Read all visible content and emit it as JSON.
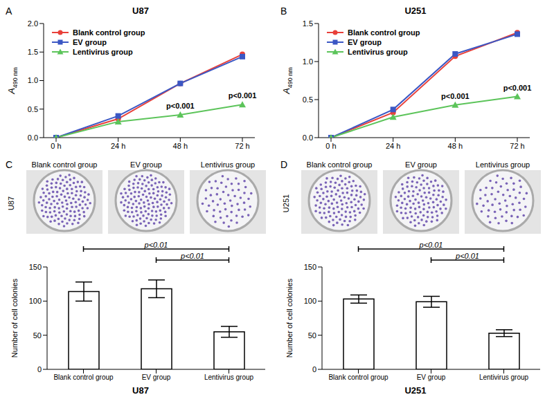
{
  "chart_data": [
    {
      "type": "line",
      "panel_label": "A",
      "title": "U87",
      "y_label": "A490 nm",
      "categories": [
        "0 h",
        "24 h",
        "48 h",
        "72 h"
      ],
      "series": [
        {
          "name": "Blank control group",
          "color": "#e8403a",
          "marker": "circle",
          "values": [
            0,
            0.33,
            0.95,
            1.46
          ]
        },
        {
          "name": "EV group",
          "color": "#3b57c4",
          "marker": "square",
          "values": [
            0,
            0.38,
            0.95,
            1.42
          ]
        },
        {
          "name": "Lentivirus group",
          "color": "#5cc45a",
          "marker": "triangle",
          "values": [
            0,
            0.28,
            0.4,
            0.58
          ]
        }
      ],
      "ylim": [
        0,
        2
      ],
      "yticks": [
        {
          "value": 0,
          "label": "0.0"
        },
        {
          "value": 0.5,
          "label": "0.5"
        },
        {
          "value": 1,
          "label": "1.0"
        },
        {
          "value": 1.5,
          "label": "1.5"
        },
        {
          "value": 2,
          "label": "2.0"
        }
      ],
      "legend": "upper left",
      "annotations": [
        {
          "series": "Lentivirus group",
          "category": "48 h",
          "text": "p<0.001"
        },
        {
          "series": "Lentivirus group",
          "category": "72 h",
          "text": "p<0.001"
        }
      ]
    },
    {
      "type": "line",
      "panel_label": "B",
      "title": "U251",
      "y_label": "A490 nm",
      "categories": [
        "0 h",
        "24 h",
        "48 h",
        "72 h"
      ],
      "series": [
        {
          "name": "Blank control group",
          "color": "#e8403a",
          "marker": "circle",
          "values": [
            0,
            0.33,
            1.07,
            1.38
          ]
        },
        {
          "name": "EV group",
          "color": "#3b57c4",
          "marker": "square",
          "values": [
            0,
            0.37,
            1.1,
            1.36
          ]
        },
        {
          "name": "Lentivirus group",
          "color": "#5cc45a",
          "marker": "triangle",
          "values": [
            0,
            0.27,
            0.43,
            0.54
          ]
        }
      ],
      "ylim": [
        0,
        1.5
      ],
      "yticks": [
        {
          "value": 0,
          "label": "0.0"
        },
        {
          "value": 0.5,
          "label": "0.5"
        },
        {
          "value": 1,
          "label": "1.0"
        },
        {
          "value": 1.5,
          "label": "1.5"
        }
      ],
      "legend": "upper left",
      "annotations": [
        {
          "series": "Lentivirus group",
          "category": "48 h",
          "text": "p<0.001"
        },
        {
          "series": "Lentivirus group",
          "category": "72 h",
          "text": "p<0.001"
        }
      ]
    },
    {
      "type": "bar",
      "panel_label": "C",
      "title": "U87",
      "side_label": "U87",
      "y_label": "Number of cell colonies",
      "categories": [
        "Blank control group",
        "EV group",
        "Lentivirus group"
      ],
      "values": [
        114,
        118,
        55
      ],
      "errors": [
        14,
        13,
        8
      ],
      "ylim": [
        0,
        150
      ],
      "yticks": [
        0,
        50,
        100,
        150
      ],
      "color": "#ffffff",
      "comparisons": [
        {
          "from": 0,
          "to": 2,
          "label": "p<0.01"
        },
        {
          "from": 1,
          "to": 2,
          "label": "p<0.01"
        }
      ]
    },
    {
      "type": "bar",
      "panel_label": "D",
      "title": "U251",
      "side_label": "U251",
      "y_label": "Number of cell colonies",
      "categories": [
        "Blank control group",
        "EV group",
        "Lentivirus group"
      ],
      "values": [
        103,
        99,
        53
      ],
      "errors": [
        6,
        8,
        5
      ],
      "ylim": [
        0,
        150
      ],
      "yticks": [
        0,
        50,
        100,
        150
      ],
      "color": "#ffffff",
      "comparisons": [
        {
          "from": 0,
          "to": 2,
          "label": "p<0.01"
        },
        {
          "from": 1,
          "to": 2,
          "label": "p<0.01"
        }
      ]
    }
  ]
}
